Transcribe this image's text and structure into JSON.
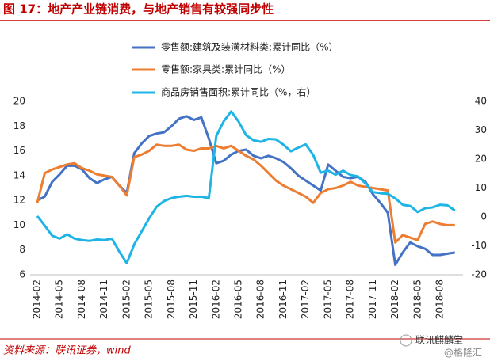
{
  "chart_data": {
    "type": "line",
    "title": "图 17：地产产业链消费，与地产销售有较强同步性",
    "source": "资料来源：联讯证券，wind",
    "watermark": "联讯麒麟堂",
    "watermark_sub": "@格隆汇",
    "categories": [
      "2014-02",
      null,
      null,
      "2014-05",
      null,
      null,
      "2014-08",
      null,
      null,
      "2014-11",
      null,
      null,
      "2015-02",
      null,
      null,
      "2015-05",
      null,
      null,
      "2015-08",
      null,
      null,
      "2015-11",
      null,
      null,
      "2016-02",
      null,
      null,
      "2016-05",
      null,
      null,
      "2016-08",
      null,
      null,
      "2016-11",
      null,
      null,
      "2017-02",
      null,
      null,
      "2017-05",
      null,
      null,
      "2017-08",
      null,
      null,
      "2017-11",
      null,
      null,
      "2018-02",
      null,
      null,
      "2018-05",
      null,
      null,
      "2018-08",
      null,
      null
    ],
    "series": [
      {
        "name": "零售额:建筑及装潢材料类:累计同比（%）",
        "color": "#4472c4",
        "values": [
          12.0,
          12.3,
          13.5,
          14.1,
          14.8,
          14.8,
          14.5,
          13.8,
          13.4,
          13.7,
          13.9,
          13.2,
          12.6,
          15.8,
          16.6,
          17.2,
          17.4,
          17.5,
          18.0,
          18.6,
          18.8,
          18.5,
          18.7,
          17.0,
          15.0,
          15.2,
          15.7,
          16.0,
          16.1,
          15.6,
          15.4,
          15.6,
          15.4,
          15.1,
          14.6,
          14.0,
          13.6,
          13.2,
          12.8,
          14.9,
          14.4,
          13.9,
          13.8,
          13.9,
          13.5,
          12.5,
          11.8,
          11.0,
          6.8,
          7.8,
          8.6,
          8.3,
          8.1,
          7.6,
          7.6,
          7.7,
          7.8
        ]
      },
      {
        "name": "零售额:家具类:累计同比（%）",
        "color": "#ed7d31",
        "values": [
          11.8,
          14.2,
          14.5,
          14.7,
          14.9,
          15.0,
          14.6,
          14.4,
          14.1,
          14.0,
          13.9,
          13.2,
          12.4,
          15.5,
          15.7,
          16.0,
          16.5,
          16.4,
          16.4,
          16.5,
          16.1,
          16.0,
          16.2,
          16.2,
          16.4,
          16.2,
          16.4,
          16.0,
          15.6,
          15.3,
          14.8,
          14.2,
          13.6,
          13.2,
          12.9,
          12.6,
          12.3,
          11.8,
          12.6,
          12.9,
          13.0,
          13.2,
          13.5,
          13.2,
          13.1,
          13.0,
          12.9,
          12.8,
          8.6,
          9.2,
          9.0,
          8.8,
          10.1,
          10.3,
          10.1,
          10.0,
          10.0
        ]
      },
      {
        "name": "商品房销售面积:累计同比（%，右）",
        "color": "#1fb4e6",
        "axis": "y2",
        "values": [
          0.3,
          -3,
          -6.5,
          -7.5,
          -6,
          -7.5,
          -8,
          -8.3,
          -7.8,
          -8,
          -7.5,
          -12,
          -16,
          -9.5,
          -5,
          -0.5,
          3.5,
          5.5,
          6.5,
          7,
          7.3,
          7,
          7,
          6.5,
          28,
          33.1,
          36.5,
          33,
          28.3,
          26.5,
          26,
          27,
          26.8,
          25,
          22.7,
          24,
          25.1,
          21.4,
          15.3,
          16,
          14.6,
          16,
          14.5,
          14,
          11.6,
          8.6,
          8.2,
          8,
          6.4,
          4.2,
          3.8,
          1.7,
          3.0,
          3.3,
          4.2,
          4.0,
          2.2
        ]
      }
    ],
    "ylim": [
      6,
      20
    ],
    "yticks": [
      6,
      8,
      10,
      12,
      14,
      16,
      18,
      20
    ],
    "y2lim": [
      -20,
      40
    ],
    "y2ticks": [
      -20,
      -10,
      0,
      10,
      20,
      30,
      40
    ],
    "grid": false
  }
}
